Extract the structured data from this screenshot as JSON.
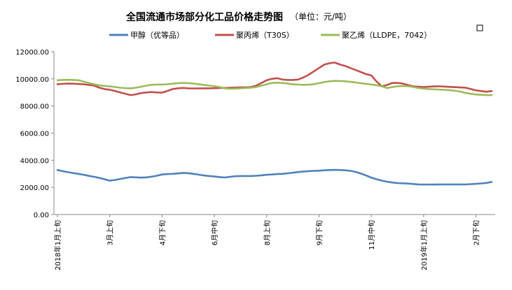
{
  "chart_data": {
    "type": "line",
    "title": "全国流通市场部分化工品价格走势图",
    "subtitle": "（单位：元/吨）",
    "ylim": [
      0,
      12000
    ],
    "y_ticks": [
      "0.00",
      "2000.00",
      "4000.00",
      "6000.00",
      "8000.00",
      "10000.00",
      "12000.00"
    ],
    "grid": false,
    "legend_position": "top",
    "x_tick_labels": [
      {
        "index": 0,
        "label": "2018年1月上旬"
      },
      {
        "index": 10,
        "label": "3月上旬"
      },
      {
        "index": 20,
        "label": "4月下旬"
      },
      {
        "index": 30,
        "label": "6月中旬"
      },
      {
        "index": 40,
        "label": "8月上旬"
      },
      {
        "index": 50,
        "label": "9月下旬"
      },
      {
        "index": 60,
        "label": "11月中旬"
      },
      {
        "index": 70,
        "label": "2019年1月上旬"
      },
      {
        "index": 80,
        "label": "2月下旬"
      }
    ],
    "series": [
      {
        "name": "甲醇（优等品）",
        "color": "#4f81bd",
        "values": [
          3280,
          3200,
          3120,
          3060,
          3000,
          2930,
          2850,
          2780,
          2700,
          2600,
          2500,
          2550,
          2620,
          2700,
          2760,
          2740,
          2720,
          2740,
          2790,
          2860,
          2950,
          2980,
          3000,
          3030,
          3070,
          3050,
          3000,
          2940,
          2880,
          2840,
          2800,
          2760,
          2730,
          2780,
          2820,
          2840,
          2840,
          2840,
          2860,
          2890,
          2930,
          2950,
          2980,
          3000,
          3040,
          3080,
          3130,
          3170,
          3200,
          3220,
          3230,
          3260,
          3280,
          3290,
          3280,
          3260,
          3220,
          3140,
          3020,
          2880,
          2720,
          2600,
          2500,
          2420,
          2360,
          2320,
          2300,
          2280,
          2250,
          2220,
          2210,
          2210,
          2210,
          2220,
          2220,
          2220,
          2220,
          2220,
          2220,
          2240,
          2260,
          2290,
          2330,
          2400
        ]
      },
      {
        "name": "聚丙烯（T30S）",
        "color": "#c0504d",
        "values": [
          9600,
          9630,
          9650,
          9640,
          9620,
          9600,
          9550,
          9500,
          9350,
          9250,
          9200,
          9100,
          9000,
          8900,
          8800,
          8860,
          8950,
          9000,
          9030,
          9000,
          8980,
          9100,
          9250,
          9300,
          9330,
          9300,
          9290,
          9290,
          9300,
          9300,
          9310,
          9320,
          9330,
          9350,
          9360,
          9380,
          9370,
          9400,
          9500,
          9700,
          9900,
          10000,
          10050,
          9950,
          9920,
          9920,
          9950,
          10100,
          10300,
          10550,
          10800,
          11050,
          11150,
          11200,
          11050,
          10950,
          10800,
          10650,
          10500,
          10350,
          10250,
          9800,
          9450,
          9550,
          9700,
          9700,
          9650,
          9550,
          9450,
          9420,
          9400,
          9420,
          9440,
          9450,
          9430,
          9410,
          9390,
          9370,
          9350,
          9250,
          9150,
          9100,
          9050,
          9100
        ]
      },
      {
        "name": "聚乙烯（LLDPE，7042）",
        "color": "#9bbb59",
        "values": [
          9900,
          9920,
          9930,
          9920,
          9900,
          9800,
          9700,
          9600,
          9520,
          9480,
          9440,
          9400,
          9350,
          9310,
          9300,
          9350,
          9420,
          9500,
          9560,
          9580,
          9580,
          9600,
          9640,
          9680,
          9700,
          9690,
          9650,
          9600,
          9550,
          9500,
          9450,
          9400,
          9300,
          9270,
          9280,
          9300,
          9320,
          9350,
          9400,
          9500,
          9600,
          9700,
          9720,
          9700,
          9650,
          9600,
          9580,
          9560,
          9570,
          9600,
          9680,
          9760,
          9820,
          9850,
          9840,
          9820,
          9780,
          9730,
          9680,
          9630,
          9580,
          9530,
          9450,
          9320,
          9400,
          9450,
          9470,
          9460,
          9400,
          9320,
          9280,
          9250,
          9230,
          9210,
          9190,
          9160,
          9120,
          9060,
          8960,
          8900,
          8850,
          8820,
          8800,
          8800
        ]
      }
    ]
  }
}
